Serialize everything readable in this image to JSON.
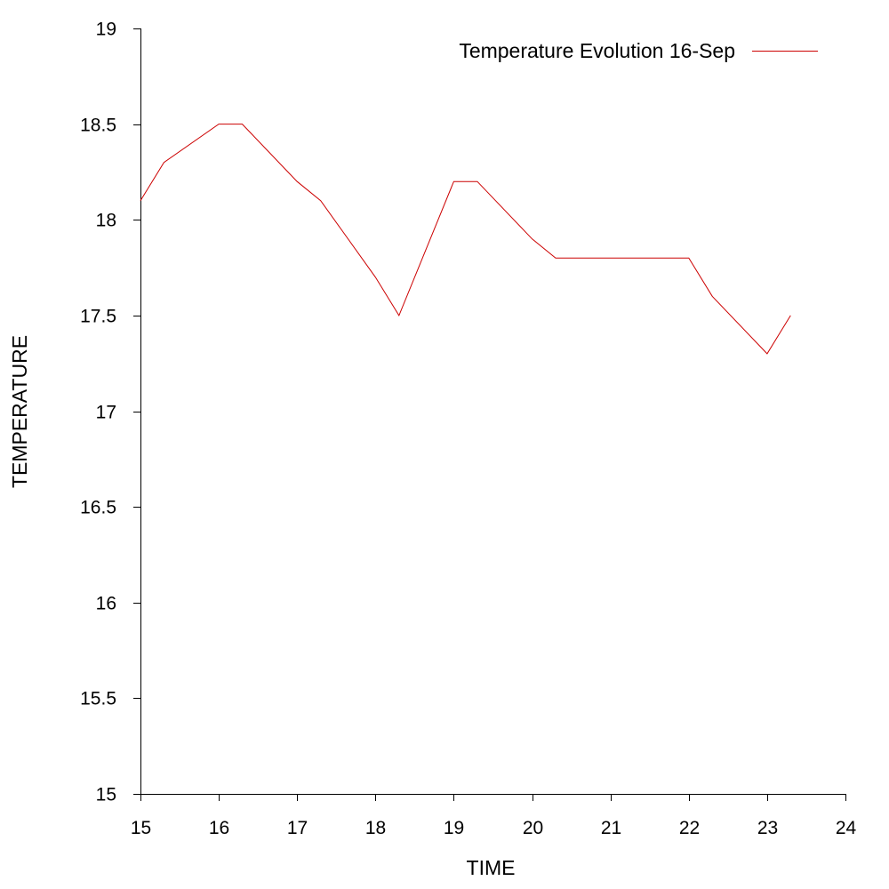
{
  "chart_data": {
    "type": "line",
    "title": "",
    "xlabel": "TIME",
    "ylabel": "TEMPERATURE",
    "xlim": [
      15,
      24
    ],
    "ylim": [
      15,
      19
    ],
    "xticks": [
      "15",
      "16",
      "17",
      "18",
      "19",
      "20",
      "21",
      "22",
      "23",
      "24"
    ],
    "yticks": [
      "15",
      "15.5",
      "16",
      "16.5",
      "17",
      "17.5",
      "18",
      "18.5",
      "19"
    ],
    "grid": false,
    "legend_position": "top-right",
    "series": [
      {
        "name": "Temperature Evolution 16-Sep",
        "color": "#cc0000",
        "x": [
          15.0,
          15.3,
          16.0,
          16.3,
          17.0,
          17.3,
          18.0,
          18.3,
          19.0,
          19.3,
          20.0,
          20.3,
          21.0,
          21.3,
          22.0,
          22.3,
          23.0,
          23.3
        ],
        "y": [
          18.1,
          18.3,
          18.5,
          18.5,
          18.2,
          18.1,
          17.7,
          17.5,
          18.2,
          18.2,
          17.9,
          17.8,
          17.8,
          17.8,
          17.8,
          17.6,
          17.3,
          17.5
        ]
      }
    ]
  }
}
